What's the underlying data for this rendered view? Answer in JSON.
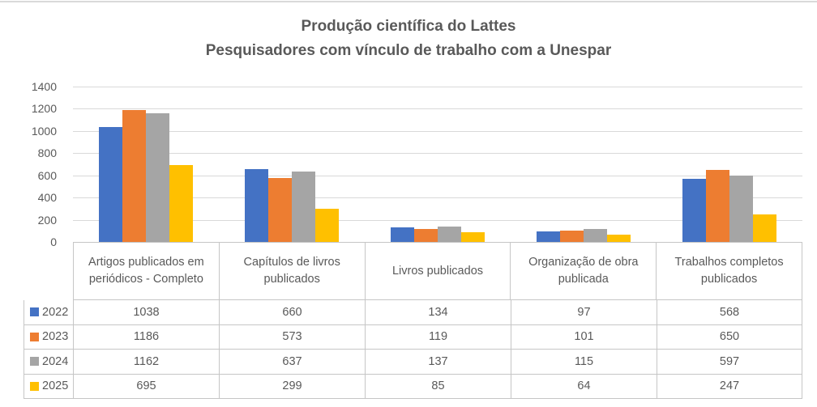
{
  "title": {
    "line1": "Produção científica do Lattes",
    "line2": "Pesquisadores com vínculo de trabalho com a Unespar"
  },
  "chart_data": {
    "type": "bar",
    "title": "Produção científica do Lattes",
    "subtitle": "Pesquisadores com vínculo de trabalho com a Unespar",
    "categories": [
      "Artigos publicados em periódicos - Completo",
      "Capítulos de livros publicados",
      "Livros publicados",
      "Organização de obra publicada",
      "Trabalhos completos publicados"
    ],
    "series": [
      {
        "name": "2022",
        "color": "#4472C4",
        "values": [
          1038,
          660,
          134,
          97,
          568
        ]
      },
      {
        "name": "2023",
        "color": "#ED7D31",
        "values": [
          1186,
          573,
          119,
          101,
          650
        ]
      },
      {
        "name": "2024",
        "color": "#A5A5A5",
        "values": [
          1162,
          637,
          137,
          115,
          597
        ]
      },
      {
        "name": "2025",
        "color": "#FFC000",
        "values": [
          695,
          299,
          85,
          64,
          247
        ]
      }
    ],
    "y_axis": {
      "min": 0,
      "max": 1400,
      "step": 200,
      "ticks": [
        0,
        200,
        400,
        600,
        800,
        1000,
        1200,
        1400
      ]
    },
    "grid": true,
    "legend_position": "data-table-left",
    "data_table_shown": true
  },
  "colors": {
    "text": "#595959",
    "gridline": "#D9D9D9",
    "axis_line": "#C6C6C6",
    "table_border": "#C6C6C6",
    "background": "#FFFFFF",
    "series_2022": "#4472C4",
    "series_2023": "#ED7D31",
    "series_2024": "#A5A5A5",
    "series_2025": "#FFC000"
  }
}
